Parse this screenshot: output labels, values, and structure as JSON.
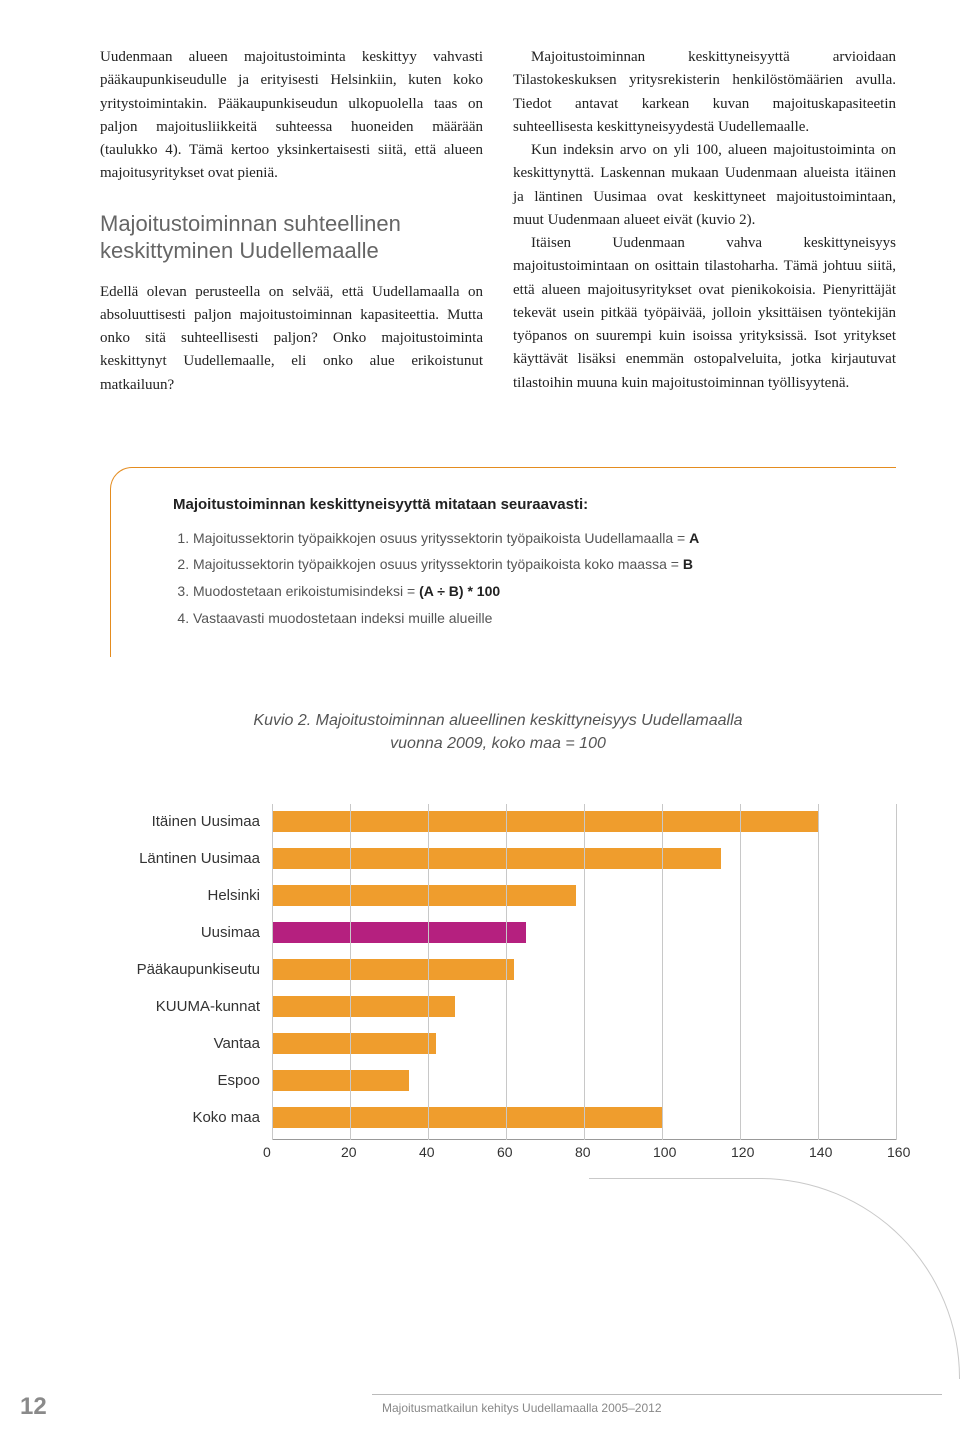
{
  "body": {
    "p1": "Uudenmaan alueen majoitustoiminta keskittyy vahvasti pääkaupunkiseudulle ja erityisesti Helsinkiin, kuten koko yritystoimintakin. Pääkaupunkiseudun ulkopuolella taas on paljon majoitusliikkeitä suhteessa huoneiden määrään (taulukko 4). Tämä kertoo yksinkertaisesti siitä, että alueen majoitusyritykset ovat pieniä.",
    "h2": "Majoitustoiminnan suhteellinen keskittyminen Uudellemaalle",
    "p2": "Edellä olevan perusteella on selvää, että Uudellamaalla on absoluuttisesti paljon majoitustoiminnan kapasiteettia. Mutta onko sitä suhteellisesti paljon? Onko majoitustoiminta keskittynyt Uudellemaalle, eli onko alue erikoistunut matkailuun?",
    "p3": "Majoitustoiminnan keskittyneisyyttä arvioidaan Tilastokeskuksen yritysrekisterin henkilöstömäärien avulla. Tiedot antavat karkean kuvan majoituskapasiteetin suhteellisesta keskittyneisyydestä Uudellemaalle.",
    "p4": "Kun indeksin arvo on yli 100, alueen majoitustoiminta on keskittynyttä. Laskennan mukaan Uudenmaan alueista itäinen ja läntinen Uusimaa ovat keskittyneet majoitustoimintaan, muut Uudenmaan alueet eivät (kuvio 2).",
    "p5": "Itäisen Uudenmaan vahva keskittyneisyys majoitustoimintaan on osittain tilastoharha. Tämä johtuu siitä, että alueen majoitusyritykset ovat pienikokoisia. Pienyrittäjät tekevät usein pitkää työpäivää, jolloin yksittäisen työntekijän työpanos on suurempi kuin isoissa yrityksissä. Isot yritykset käyttävät lisäksi enemmän ostopalveluita, jotka kirjautuvat tilastoihin muuna kuin majoitustoiminnan työllisyytenä."
  },
  "box": {
    "title": "Majoitustoiminnan keskittyneisyyttä mitataan seuraavasti:",
    "items": [
      "Majoitussektorin työpaikkojen osuus yrityssektorin työpaikoista Uudellamaalla = A",
      "Majoitussektorin työpaikkojen osuus yrityssektorin työpaikoista koko maassa = B",
      "Muodostetaan erikoistumisindeksi = (A ÷ B) * 100",
      "Vastaavasti muodostetaan indeksi muille alueille"
    ]
  },
  "figure": {
    "caption_a": "Kuvio 2. Majoitustoiminnan alueellinen keskittyneisyys Uudellamaalla",
    "caption_b": "vuonna 2009, koko maa = 100"
  },
  "chart": {
    "type": "horizontal-bar",
    "xlim": [
      0,
      160
    ],
    "xticks": [
      0,
      20,
      40,
      60,
      80,
      100,
      120,
      140,
      160
    ],
    "bar_default_color": "#ef9d2d",
    "bar_highlight_color": "#b5207f",
    "axis_color": "#999999",
    "grid_color": "#c8c8c8",
    "label_fontsize": 15,
    "tick_fontsize": 14,
    "series": [
      {
        "label": "Itäinen Uusimaa",
        "value": 140,
        "hl": false
      },
      {
        "label": "Läntinen Uusimaa",
        "value": 115,
        "hl": false
      },
      {
        "label": "Helsinki",
        "value": 78,
        "hl": false
      },
      {
        "label": "Uusimaa",
        "value": 65,
        "hl": true
      },
      {
        "label": "Pääkaupunkiseutu",
        "value": 62,
        "hl": false
      },
      {
        "label": "KUUMA-kunnat",
        "value": 47,
        "hl": false
      },
      {
        "label": "Vantaa",
        "value": 42,
        "hl": false
      },
      {
        "label": "Espoo",
        "value": 35,
        "hl": false
      },
      {
        "label": "Koko maa",
        "value": 100,
        "hl": false
      }
    ]
  },
  "footer": {
    "page": "12",
    "text": "Majoitusmatkailun kehitys Uudellamaalla 2005–2012"
  }
}
